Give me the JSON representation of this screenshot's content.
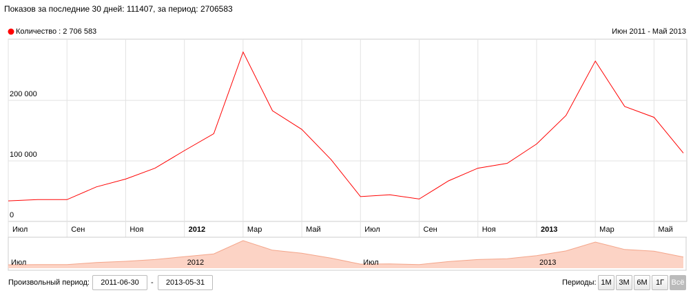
{
  "header": "Показов за последние 30 дней: 111407, за период: 2706583",
  "chart_data": {
    "type": "line",
    "subtitle": "Июн 2011 - Май 2013",
    "categories": [
      "Июл",
      null,
      "Сен",
      null,
      "Ноя",
      null,
      "2012",
      null,
      "Мар",
      null,
      "Май",
      null,
      "Июл",
      null,
      "Сен",
      null,
      "Ноя",
      null,
      "2013",
      null,
      "Мар",
      null,
      "Май",
      null
    ],
    "series": [
      {
        "name": "Количество : 2 706 583",
        "color": "#ff0000",
        "values": [
          34000,
          36000,
          36000,
          57000,
          70000,
          88000,
          117000,
          145000,
          280000,
          183000,
          152000,
          102000,
          41000,
          44000,
          37000,
          67000,
          88000,
          96000,
          128000,
          175000,
          265000,
          190000,
          172000,
          113000
        ]
      }
    ],
    "ylim": [
      0,
      300000
    ],
    "yticks": [
      0,
      {
        "value": 100000,
        "label": "100 000"
      },
      {
        "value": 200000,
        "label": "200 000"
      }
    ],
    "grid": true,
    "navigator_labels": [
      "Июл",
      "2012",
      "Июл",
      "2013"
    ]
  },
  "controls": {
    "custom_label": "Произвольный период:",
    "date_from": "2011-06-30",
    "dash": "-",
    "date_to": "2013-05-31",
    "periods_label": "Периоды:",
    "periods": [
      "1М",
      "3М",
      "6М",
      "1Г",
      "Всё"
    ]
  }
}
